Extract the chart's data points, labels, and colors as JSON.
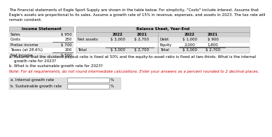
{
  "header_text": "The financial statements of Eagle Sport Supply are shown in the table below. For simplicity, \"Costs\" include interest. Assume that\nEagle's assets are proportional to its sales. Assume a growth rate of 15% in revenue, expenses, and assets in 2023. The tax rate will\nremain constant.",
  "income_title": "Income Statement",
  "income_rows": [
    [
      "Sales",
      "$ 950"
    ],
    [
      "Costs",
      "250"
    ],
    [
      "Pretax income",
      "$ 700"
    ],
    [
      "Taxes (at 28.6%)",
      "200"
    ],
    [
      "Net income",
      "$ 500"
    ]
  ],
  "balance_title": "Balance Sheet, Year-End",
  "balance_year_left": [
    "2022",
    "2021"
  ],
  "balance_year_right": [
    "2022",
    "2021"
  ],
  "balance_left_label": "Net assets",
  "balance_left_vals": [
    "$ 3,000",
    "$ 2,700"
  ],
  "balance_right_rows": [
    [
      "Debt",
      "$ 1,000",
      "$ 900"
    ],
    [
      "Equity",
      "2,000",
      "1,800"
    ]
  ],
  "balance_total_left": [
    "Total",
    "$ 3,000",
    "$ 2,700"
  ],
  "balance_total_right": [
    "Total",
    "$ 3,000",
    "$ 2,700"
  ],
  "question_a": "a. Assume that the dividend payout ratio is fixed at 50% and the equity-to-asset ratio is fixed at two-thirds. What is the internal",
  "question_a2": "    growth rate for 2023?",
  "question_b": "b. What is the sustainable growth rate for 2023?",
  "note_text": "Note: For all requirements, do not round intermediate calculations. Enter your answers as a percent rounded to 2 decimal places.",
  "answer_a_label": "a. Internal growth rate",
  "answer_b_label": "b. Sustainable growth rate",
  "answer_suffix": "%",
  "bg_color": "#ffffff",
  "table_header_bg": "#d0d0d0",
  "table_row_bg_alt": "#e8e8e8",
  "note_color": "#cc0000",
  "text_color": "#000000",
  "answer_box_border": "#aaaaaa",
  "answer_label_bg": "#e0e0e0"
}
